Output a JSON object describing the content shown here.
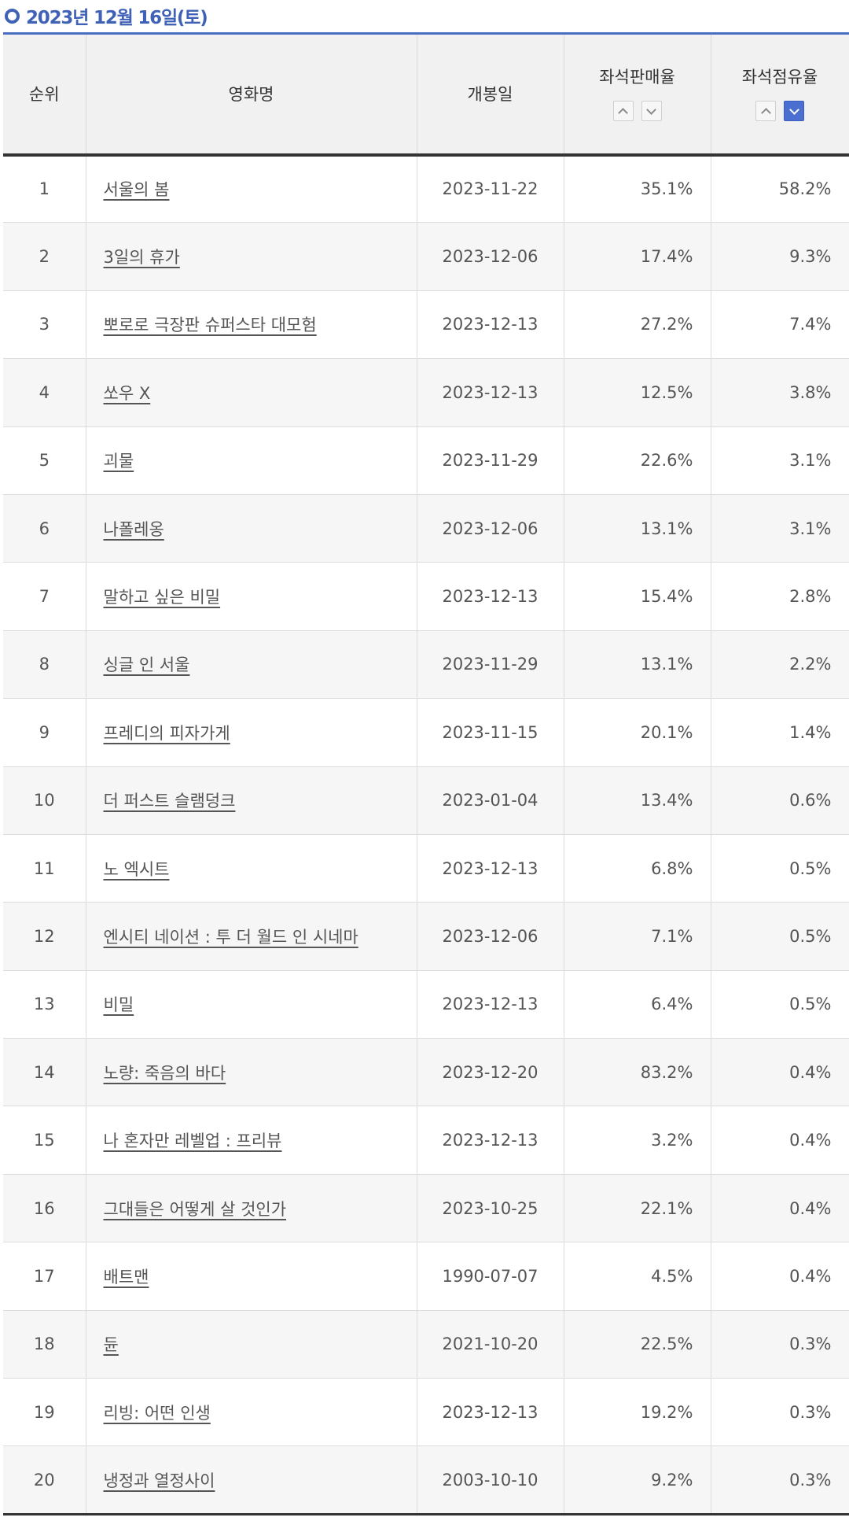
{
  "header": {
    "date_title": "2023년 12월 16일(토)"
  },
  "table": {
    "columns": {
      "rank": "순위",
      "title": "영화명",
      "release": "개봉일",
      "sales": "좌석판매율",
      "share": "좌석점유율"
    },
    "sort": {
      "sales": "none",
      "share": "desc"
    },
    "rows": [
      {
        "rank": "1",
        "title": "서울의 봄",
        "release": "2023-11-22",
        "sales": "35.1%",
        "share": "58.2%"
      },
      {
        "rank": "2",
        "title": "3일의 휴가",
        "release": "2023-12-06",
        "sales": "17.4%",
        "share": "9.3%"
      },
      {
        "rank": "3",
        "title": "뽀로로 극장판 슈퍼스타 대모험",
        "release": "2023-12-13",
        "sales": "27.2%",
        "share": "7.4%"
      },
      {
        "rank": "4",
        "title": "쏘우 X",
        "release": "2023-12-13",
        "sales": "12.5%",
        "share": "3.8%"
      },
      {
        "rank": "5",
        "title": "괴물",
        "release": "2023-11-29",
        "sales": "22.6%",
        "share": "3.1%"
      },
      {
        "rank": "6",
        "title": "나폴레옹",
        "release": "2023-12-06",
        "sales": "13.1%",
        "share": "3.1%"
      },
      {
        "rank": "7",
        "title": "말하고 싶은 비밀",
        "release": "2023-12-13",
        "sales": "15.4%",
        "share": "2.8%"
      },
      {
        "rank": "8",
        "title": "싱글 인 서울",
        "release": "2023-11-29",
        "sales": "13.1%",
        "share": "2.2%"
      },
      {
        "rank": "9",
        "title": "프레디의 피자가게",
        "release": "2023-11-15",
        "sales": "20.1%",
        "share": "1.4%"
      },
      {
        "rank": "10",
        "title": "더 퍼스트 슬램덩크",
        "release": "2023-01-04",
        "sales": "13.4%",
        "share": "0.6%"
      },
      {
        "rank": "11",
        "title": "노 엑시트",
        "release": "2023-12-13",
        "sales": "6.8%",
        "share": "0.5%"
      },
      {
        "rank": "12",
        "title": "엔시티 네이션 : 투 더 월드 인 시네마",
        "release": "2023-12-06",
        "sales": "7.1%",
        "share": "0.5%"
      },
      {
        "rank": "13",
        "title": "비밀",
        "release": "2023-12-13",
        "sales": "6.4%",
        "share": "0.5%"
      },
      {
        "rank": "14",
        "title": "노량: 죽음의 바다",
        "release": "2023-12-20",
        "sales": "83.2%",
        "share": "0.4%"
      },
      {
        "rank": "15",
        "title": "나 혼자만 레벨업 : 프리뷰",
        "release": "2023-12-13",
        "sales": "3.2%",
        "share": "0.4%"
      },
      {
        "rank": "16",
        "title": "그대들은 어떻게 살 것인가",
        "release": "2023-10-25",
        "sales": "22.1%",
        "share": "0.4%"
      },
      {
        "rank": "17",
        "title": "배트맨",
        "release": "1990-07-07",
        "sales": "4.5%",
        "share": "0.4%"
      },
      {
        "rank": "18",
        "title": "듄",
        "release": "2021-10-20",
        "sales": "22.5%",
        "share": "0.3%"
      },
      {
        "rank": "19",
        "title": "리빙: 어떤 인생",
        "release": "2023-12-13",
        "sales": "19.2%",
        "share": "0.3%"
      },
      {
        "rank": "20",
        "title": "냉정과 열정사이",
        "release": "2003-10-10",
        "sales": "9.2%",
        "share": "0.3%"
      }
    ]
  }
}
